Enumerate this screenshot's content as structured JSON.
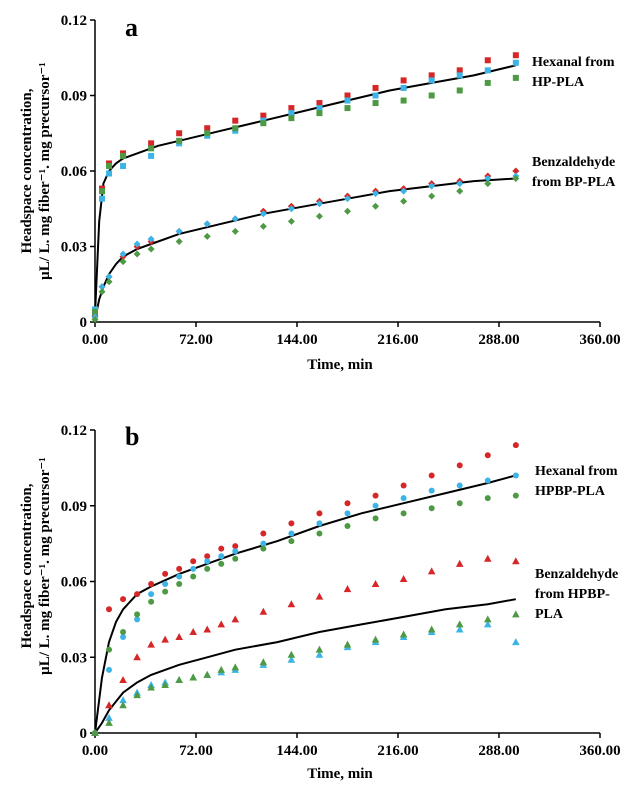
{
  "colors": {
    "red": "#d62728",
    "blue": "#3cb4e6",
    "green": "#4e9a44",
    "fit": "#000000",
    "axis": "#000000"
  },
  "chart_data": [
    {
      "type": "scatter",
      "panel": "a",
      "xlabel": "Time, min",
      "ylabel_line1": "Headspace concentration,",
      "ylabel_line2": "μL/ L. mg fiber⁻¹. mg precursor⁻¹",
      "xlim": [
        0,
        360
      ],
      "ylim": [
        0,
        0.12
      ],
      "xticks": [
        "0.00",
        "72.00",
        "144.00",
        "216.00",
        "288.00",
        "360.00"
      ],
      "yticks": [
        "0",
        "0.03",
        "0.06",
        "0.09",
        "0.12"
      ],
      "grid": false,
      "annotations": [
        {
          "lines": [
            "Hexanal from",
            "HP-PLA"
          ]
        },
        {
          "lines": [
            "Benzaldehyde",
            "from BP-PLA"
          ]
        }
      ],
      "series": [
        {
          "group": "hexanal",
          "marker": "square",
          "color": "red",
          "x": [
            0,
            5,
            10,
            20,
            40,
            60,
            80,
            100,
            120,
            140,
            160,
            180,
            200,
            220,
            240,
            260,
            280,
            300
          ],
          "y": [
            0.003,
            0.053,
            0.063,
            0.067,
            0.071,
            0.075,
            0.077,
            0.08,
            0.082,
            0.085,
            0.087,
            0.09,
            0.093,
            0.096,
            0.098,
            0.1,
            0.104,
            0.106
          ]
        },
        {
          "group": "hexanal",
          "marker": "square",
          "color": "blue",
          "x": [
            0,
            5,
            10,
            20,
            40,
            60,
            80,
            100,
            120,
            140,
            160,
            180,
            200,
            220,
            240,
            260,
            280,
            300
          ],
          "y": [
            0.005,
            0.049,
            0.059,
            0.062,
            0.066,
            0.071,
            0.074,
            0.076,
            0.08,
            0.083,
            0.085,
            0.088,
            0.09,
            0.093,
            0.096,
            0.098,
            0.1,
            0.103
          ]
        },
        {
          "group": "hexanal",
          "marker": "square",
          "color": "green",
          "x": [
            0,
            5,
            10,
            20,
            40,
            60,
            80,
            100,
            120,
            140,
            160,
            180,
            200,
            220,
            240,
            260,
            280,
            300
          ],
          "y": [
            0.004,
            0.052,
            0.062,
            0.066,
            0.069,
            0.072,
            0.075,
            0.077,
            0.079,
            0.081,
            0.083,
            0.085,
            0.087,
            0.088,
            0.09,
            0.092,
            0.095,
            0.097
          ]
        },
        {
          "group": "benzaldehyde",
          "marker": "diamond",
          "color": "red",
          "x": [
            0,
            5,
            10,
            20,
            30,
            40,
            60,
            80,
            100,
            120,
            140,
            160,
            180,
            200,
            220,
            240,
            260,
            280,
            300
          ],
          "y": [
            0.002,
            0.014,
            0.018,
            0.026,
            0.03,
            0.032,
            0.036,
            0.039,
            0.041,
            0.044,
            0.046,
            0.048,
            0.05,
            0.052,
            0.053,
            0.055,
            0.056,
            0.058,
            0.06
          ]
        },
        {
          "group": "benzaldehyde",
          "marker": "diamond",
          "color": "blue",
          "x": [
            0,
            5,
            10,
            20,
            30,
            40,
            60,
            80,
            100,
            120,
            140,
            160,
            180,
            200,
            220,
            240,
            260,
            280,
            300
          ],
          "y": [
            0.002,
            0.014,
            0.018,
            0.027,
            0.031,
            0.033,
            0.036,
            0.039,
            0.041,
            0.043,
            0.045,
            0.047,
            0.049,
            0.051,
            0.052,
            0.054,
            0.055,
            0.057,
            0.058
          ]
        },
        {
          "group": "benzaldehyde",
          "marker": "diamond",
          "color": "green",
          "x": [
            0,
            5,
            10,
            20,
            30,
            40,
            60,
            80,
            100,
            120,
            140,
            160,
            180,
            200,
            220,
            240,
            260,
            280,
            300
          ],
          "y": [
            0.001,
            0.012,
            0.016,
            0.024,
            0.027,
            0.029,
            0.032,
            0.034,
            0.036,
            0.038,
            0.04,
            0.042,
            0.044,
            0.046,
            0.048,
            0.05,
            0.052,
            0.055,
            0.057
          ]
        }
      ],
      "fits": [
        {
          "group": "hexanal",
          "x": [
            0,
            3,
            6,
            10,
            15,
            20,
            30,
            45,
            60,
            90,
            120,
            150,
            180,
            210,
            240,
            270,
            300
          ],
          "y": [
            0.003,
            0.04,
            0.055,
            0.06,
            0.063,
            0.065,
            0.067,
            0.07,
            0.072,
            0.076,
            0.08,
            0.084,
            0.088,
            0.092,
            0.095,
            0.098,
            0.102
          ]
        },
        {
          "group": "benzaldehyde",
          "x": [
            0,
            3,
            6,
            10,
            15,
            20,
            30,
            45,
            60,
            90,
            120,
            150,
            180,
            210,
            240,
            270,
            300
          ],
          "y": [
            0.001,
            0.009,
            0.014,
            0.019,
            0.023,
            0.026,
            0.029,
            0.032,
            0.035,
            0.039,
            0.043,
            0.046,
            0.049,
            0.052,
            0.054,
            0.056,
            0.057
          ]
        }
      ]
    },
    {
      "type": "scatter",
      "panel": "b",
      "xlabel": "Time, min",
      "ylabel_line1": "Headspace concentration,",
      "ylabel_line2": "μL/ L. mg fiber⁻¹. mg precursor⁻¹",
      "xlim": [
        0,
        360
      ],
      "ylim": [
        0,
        0.12
      ],
      "xticks": [
        "0.00",
        "72.00",
        "144.00",
        "216.00",
        "288.00",
        "360.00"
      ],
      "yticks": [
        "0",
        "0.03",
        "0.06",
        "0.09",
        "0.12"
      ],
      "grid": false,
      "annotations": [
        {
          "lines": [
            "Hexanal from",
            "HPBP-PLA"
          ]
        },
        {
          "lines": [
            "Benzaldehyde",
            "from HPBP-",
            "PLA"
          ]
        }
      ],
      "series": [
        {
          "group": "hexanal",
          "marker": "circle",
          "color": "red",
          "x": [
            0,
            10,
            20,
            30,
            40,
            50,
            60,
            70,
            80,
            90,
            100,
            120,
            140,
            160,
            180,
            200,
            220,
            240,
            260,
            280,
            300
          ],
          "y": [
            0.0,
            0.049,
            0.053,
            0.055,
            0.059,
            0.063,
            0.065,
            0.068,
            0.07,
            0.073,
            0.074,
            0.079,
            0.083,
            0.087,
            0.091,
            0.094,
            0.098,
            0.102,
            0.106,
            0.11,
            0.114
          ]
        },
        {
          "group": "hexanal",
          "marker": "circle",
          "color": "blue",
          "x": [
            0,
            10,
            20,
            30,
            40,
            50,
            60,
            70,
            80,
            90,
            100,
            120,
            140,
            160,
            180,
            200,
            220,
            240,
            260,
            280,
            300
          ],
          "y": [
            0.0,
            0.025,
            0.038,
            0.045,
            0.055,
            0.059,
            0.062,
            0.065,
            0.068,
            0.07,
            0.072,
            0.075,
            0.079,
            0.083,
            0.087,
            0.09,
            0.093,
            0.096,
            0.098,
            0.1,
            0.102
          ]
        },
        {
          "group": "hexanal",
          "marker": "circle",
          "color": "green",
          "x": [
            0,
            10,
            20,
            30,
            40,
            50,
            60,
            70,
            80,
            90,
            100,
            120,
            140,
            160,
            180,
            200,
            220,
            240,
            260,
            280,
            300
          ],
          "y": [
            0.0,
            0.033,
            0.04,
            0.047,
            0.052,
            0.056,
            0.059,
            0.062,
            0.065,
            0.067,
            0.069,
            0.073,
            0.076,
            0.079,
            0.082,
            0.085,
            0.087,
            0.089,
            0.091,
            0.093,
            0.094
          ]
        },
        {
          "group": "benzaldehyde",
          "marker": "triangle",
          "color": "red",
          "x": [
            0,
            10,
            20,
            30,
            40,
            50,
            60,
            70,
            80,
            90,
            100,
            120,
            140,
            160,
            180,
            200,
            220,
            240,
            260,
            280,
            300
          ],
          "y": [
            0.0,
            0.011,
            0.021,
            0.03,
            0.035,
            0.037,
            0.038,
            0.04,
            0.041,
            0.043,
            0.045,
            0.048,
            0.051,
            0.054,
            0.057,
            0.059,
            0.061,
            0.064,
            0.067,
            0.069,
            0.068
          ]
        },
        {
          "group": "benzaldehyde",
          "marker": "triangle",
          "color": "blue",
          "x": [
            0,
            10,
            20,
            30,
            40,
            50,
            60,
            70,
            80,
            90,
            100,
            120,
            140,
            160,
            180,
            200,
            220,
            240,
            260,
            280,
            300
          ],
          "y": [
            0.0,
            0.006,
            0.013,
            0.016,
            0.019,
            0.02,
            0.021,
            0.022,
            0.023,
            0.024,
            0.025,
            0.027,
            0.029,
            0.031,
            0.034,
            0.036,
            0.038,
            0.04,
            0.041,
            0.043,
            0.036
          ]
        },
        {
          "group": "benzaldehyde",
          "marker": "triangle",
          "color": "green",
          "x": [
            0,
            10,
            20,
            30,
            40,
            50,
            60,
            70,
            80,
            90,
            100,
            120,
            140,
            160,
            180,
            200,
            220,
            240,
            260,
            280,
            300
          ],
          "y": [
            0.0,
            0.004,
            0.011,
            0.015,
            0.018,
            0.019,
            0.021,
            0.022,
            0.023,
            0.025,
            0.026,
            0.028,
            0.031,
            0.033,
            0.035,
            0.037,
            0.039,
            0.041,
            0.043,
            0.045,
            0.047
          ]
        }
      ],
      "fits": [
        {
          "group": "hexanal",
          "x": [
            0,
            5,
            10,
            15,
            20,
            30,
            40,
            60,
            80,
            100,
            130,
            160,
            190,
            220,
            250,
            280,
            300
          ],
          "y": [
            0.0,
            0.022,
            0.036,
            0.044,
            0.049,
            0.055,
            0.058,
            0.063,
            0.067,
            0.071,
            0.076,
            0.082,
            0.087,
            0.091,
            0.095,
            0.099,
            0.102
          ]
        },
        {
          "group": "benzaldehyde",
          "x": [
            0,
            5,
            10,
            20,
            30,
            40,
            60,
            80,
            100,
            130,
            160,
            190,
            220,
            250,
            280,
            300
          ],
          "y": [
            0.0,
            0.004,
            0.009,
            0.016,
            0.02,
            0.023,
            0.027,
            0.03,
            0.033,
            0.036,
            0.04,
            0.043,
            0.046,
            0.049,
            0.051,
            0.053
          ]
        }
      ]
    }
  ]
}
